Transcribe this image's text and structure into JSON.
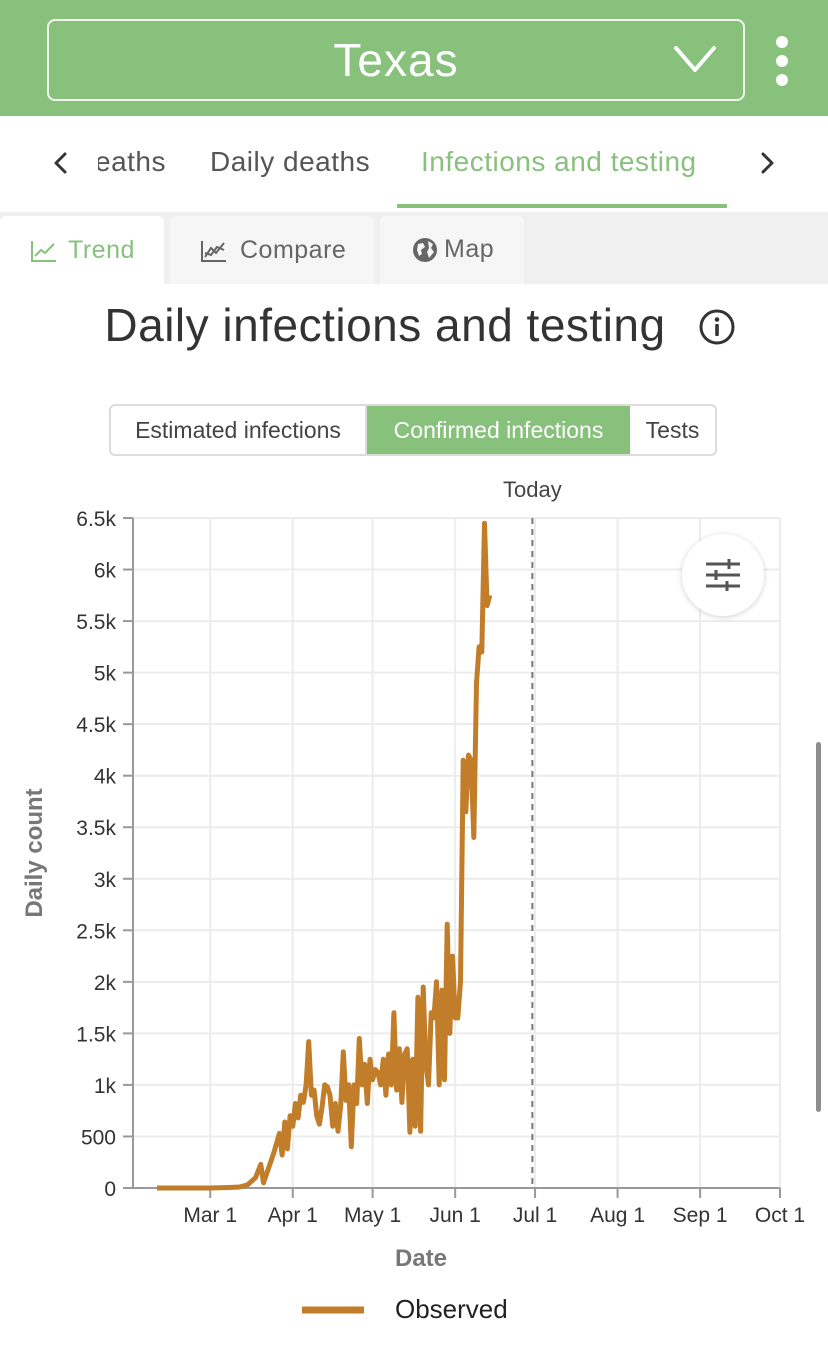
{
  "header": {
    "state": "Texas"
  },
  "metric_tabs": [
    {
      "label": "eaths"
    },
    {
      "label": "Daily deaths"
    },
    {
      "label": "Infections and testing",
      "active": true
    }
  ],
  "view_tabs": [
    {
      "label": "Trend",
      "icon": "line-chart-icon",
      "active": true
    },
    {
      "label": "Compare",
      "icon": "compare-chart-icon"
    },
    {
      "label": "Map",
      "icon": "globe-icon"
    }
  ],
  "title": "Daily infections and testing",
  "segments": [
    {
      "label": "Estimated infections"
    },
    {
      "label": "Confirmed infections",
      "selected": true
    },
    {
      "label": "Tests"
    }
  ],
  "colors": {
    "brand": "#88c17c",
    "series": "#c17d2a",
    "text": "#333333"
  },
  "chart_data": {
    "type": "line",
    "xlabel": "Date",
    "ylabel": "Daily count",
    "x_ticks": [
      "Mar 1",
      "Apr 1",
      "May 1",
      "Jun 1",
      "Jul 1",
      "Aug 1",
      "Sep 1",
      "Oct 1"
    ],
    "y_ticks": [
      "0",
      "500",
      "1k",
      "1.5k",
      "2k",
      "2.5k",
      "3k",
      "3.5k",
      "4k",
      "4.5k",
      "5k",
      "5.5k",
      "6k",
      "6.5k"
    ],
    "ylim": [
      0,
      6500
    ],
    "xlim": [
      "2020-02-01",
      "2020-10-01"
    ],
    "grid": true,
    "legend_position": "bottom",
    "today_label": "Today",
    "today_date": "2020-06-30",
    "series": [
      {
        "name": "Observed",
        "color": "#c17d2a",
        "points": [
          [
            "2020-02-10",
            0
          ],
          [
            "2020-02-20",
            0
          ],
          [
            "2020-03-01",
            0
          ],
          [
            "2020-03-08",
            5
          ],
          [
            "2020-03-12",
            10
          ],
          [
            "2020-03-15",
            30
          ],
          [
            "2020-03-18",
            100
          ],
          [
            "2020-03-20",
            230
          ],
          [
            "2020-03-21",
            50
          ],
          [
            "2020-03-23",
            200
          ],
          [
            "2020-03-25",
            350
          ],
          [
            "2020-03-27",
            530
          ],
          [
            "2020-03-28",
            320
          ],
          [
            "2020-03-29",
            640
          ],
          [
            "2020-03-30",
            380
          ],
          [
            "2020-03-31",
            700
          ],
          [
            "2020-04-01",
            600
          ],
          [
            "2020-04-02",
            820
          ],
          [
            "2020-04-03",
            680
          ],
          [
            "2020-04-04",
            900
          ],
          [
            "2020-04-05",
            830
          ],
          [
            "2020-04-06",
            1000
          ],
          [
            "2020-04-07",
            1420
          ],
          [
            "2020-04-08",
            900
          ],
          [
            "2020-04-09",
            950
          ],
          [
            "2020-04-10",
            700
          ],
          [
            "2020-04-11",
            620
          ],
          [
            "2020-04-12",
            780
          ],
          [
            "2020-04-13",
            1000
          ],
          [
            "2020-04-14",
            980
          ],
          [
            "2020-04-15",
            900
          ],
          [
            "2020-04-16",
            600
          ],
          [
            "2020-04-17",
            820
          ],
          [
            "2020-04-18",
            550
          ],
          [
            "2020-04-19",
            800
          ],
          [
            "2020-04-20",
            1320
          ],
          [
            "2020-04-21",
            850
          ],
          [
            "2020-04-22",
            1000
          ],
          [
            "2020-04-23",
            400
          ],
          [
            "2020-04-24",
            1000
          ],
          [
            "2020-04-25",
            820
          ],
          [
            "2020-04-26",
            1450
          ],
          [
            "2020-04-27",
            1000
          ],
          [
            "2020-04-28",
            1200
          ],
          [
            "2020-04-29",
            820
          ],
          [
            "2020-04-30",
            1250
          ],
          [
            "2020-05-01",
            1050
          ],
          [
            "2020-05-02",
            1150
          ],
          [
            "2020-05-03",
            1120
          ],
          [
            "2020-05-04",
            1000
          ],
          [
            "2020-05-05",
            1250
          ],
          [
            "2020-05-06",
            900
          ],
          [
            "2020-05-07",
            1300
          ],
          [
            "2020-05-08",
            1000
          ],
          [
            "2020-05-09",
            1700
          ],
          [
            "2020-05-10",
            950
          ],
          [
            "2020-05-11",
            1350
          ],
          [
            "2020-05-12",
            830
          ],
          [
            "2020-05-13",
            1300
          ],
          [
            "2020-05-14",
            1350
          ],
          [
            "2020-05-15",
            540
          ],
          [
            "2020-05-16",
            1250
          ],
          [
            "2020-05-17",
            600
          ],
          [
            "2020-05-18",
            1850
          ],
          [
            "2020-05-19",
            550
          ],
          [
            "2020-05-20",
            1950
          ],
          [
            "2020-05-21",
            1200
          ],
          [
            "2020-05-22",
            1000
          ],
          [
            "2020-05-23",
            1700
          ],
          [
            "2020-05-24",
            1650
          ],
          [
            "2020-05-25",
            2000
          ],
          [
            "2020-05-26",
            1000
          ],
          [
            "2020-05-27",
            1920
          ],
          [
            "2020-05-28",
            1050
          ],
          [
            "2020-05-29",
            2560
          ],
          [
            "2020-05-30",
            1500
          ],
          [
            "2020-05-31",
            2250
          ],
          [
            "2020-06-01",
            1650
          ],
          [
            "2020-06-02",
            1650
          ],
          [
            "2020-06-03",
            2000
          ],
          [
            "2020-06-04",
            4150
          ],
          [
            "2020-06-05",
            3650
          ],
          [
            "2020-06-06",
            4200
          ],
          [
            "2020-06-07",
            4150
          ],
          [
            "2020-06-08",
            3400
          ],
          [
            "2020-06-09",
            4900
          ],
          [
            "2020-06-10",
            5250
          ],
          [
            "2020-06-11",
            5200
          ],
          [
            "2020-06-12",
            6450
          ],
          [
            "2020-06-13",
            5650
          ],
          [
            "2020-06-14",
            5750
          ]
        ]
      }
    ]
  }
}
